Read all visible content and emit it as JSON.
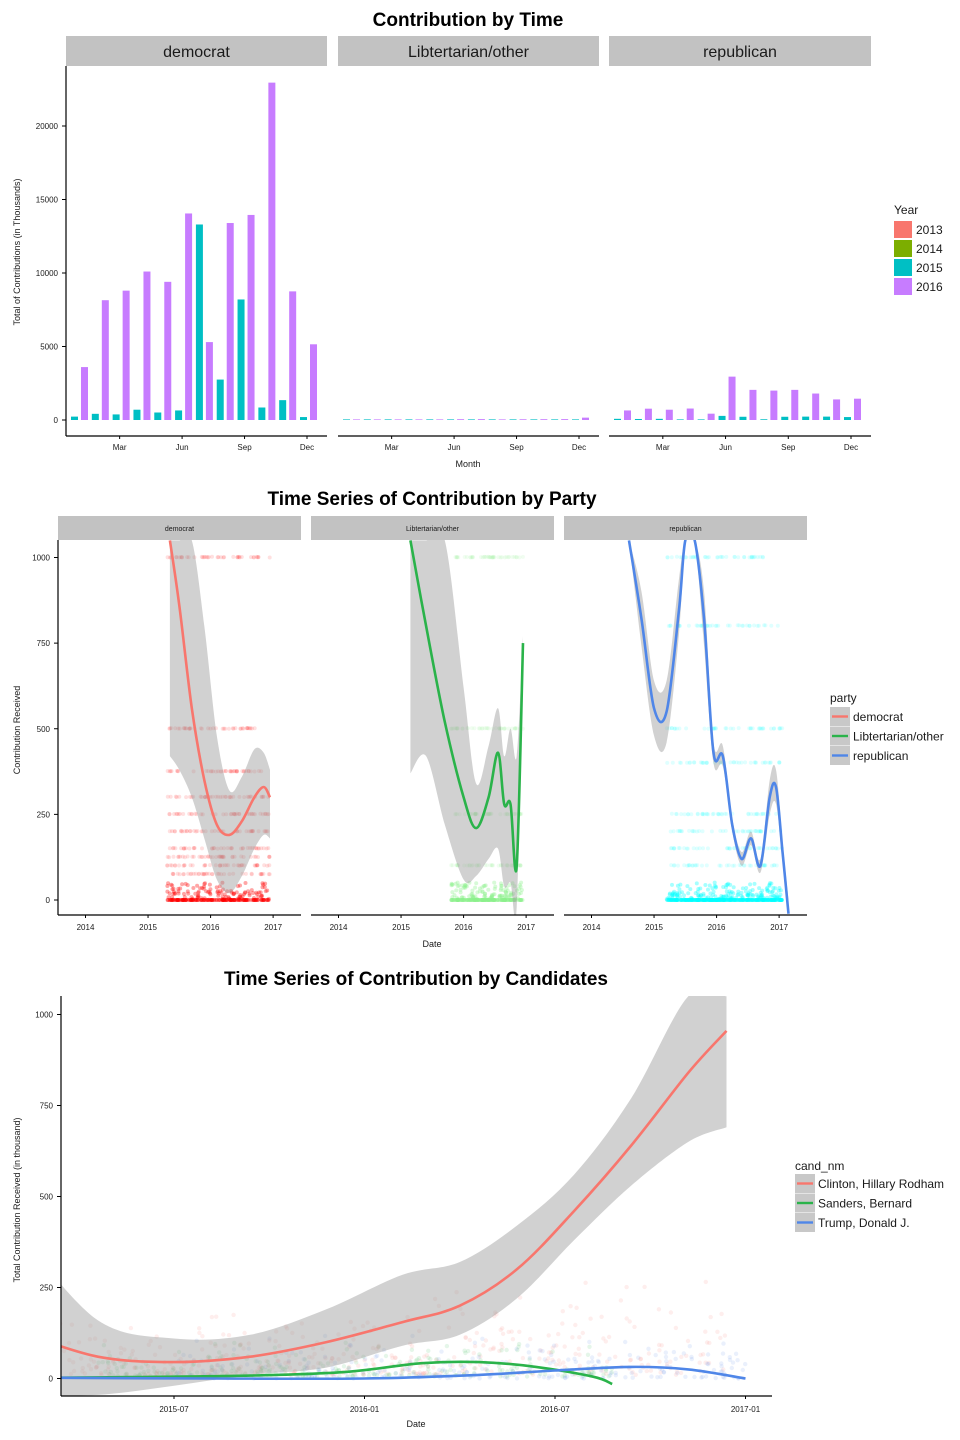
{
  "chart_data": [
    {
      "type": "bar",
      "title": "Contribution by Time",
      "xlabel": "Month",
      "ylabel": "Total of Contributions (in Thousands)",
      "ylim": [
        0,
        23500
      ],
      "y_ticks": [
        0,
        5000,
        10000,
        15000,
        20000
      ],
      "x_ticks": [
        "Mar",
        "Jun",
        "Sep",
        "Dec"
      ],
      "facets": [
        "democrat",
        "Libtertarian/other",
        "republican"
      ],
      "legend": {
        "title": "Year",
        "position": "right",
        "entries": [
          "2013",
          "2014",
          "2015",
          "2016"
        ]
      },
      "series_colors": {
        "2013": "#F8766D",
        "2014": "#7CAE00",
        "2015": "#00BFC4",
        "2016": "#C77CFF"
      },
      "series": [
        {
          "facet": "democrat",
          "year": "2015",
          "month": [
            1,
            2,
            3,
            4,
            5,
            6,
            7,
            8,
            9,
            10,
            11,
            12
          ],
          "values": [
            230,
            420,
            380,
            700,
            510,
            650,
            13300,
            2750,
            8200,
            850,
            1350,
            200
          ]
        },
        {
          "facet": "democrat",
          "year": "2016",
          "month": [
            1,
            2,
            3,
            4,
            5,
            6,
            7,
            8,
            9,
            10,
            11,
            12
          ],
          "values": [
            3600,
            8150,
            8800,
            10100,
            9400,
            14050,
            5300,
            13400,
            13950,
            22950,
            8750,
            5150
          ]
        },
        {
          "facet": "Libtertarian/other",
          "year": "2015",
          "month": [
            1,
            2,
            3,
            4,
            5,
            6,
            7,
            8,
            9,
            10,
            11,
            12
          ],
          "values": [
            0,
            0,
            0,
            0,
            0,
            0,
            30,
            20,
            10,
            10,
            0,
            0
          ]
        },
        {
          "facet": "Libtertarian/other",
          "year": "2016",
          "month": [
            1,
            2,
            3,
            4,
            5,
            6,
            7,
            8,
            9,
            10,
            11,
            12
          ],
          "values": [
            5,
            10,
            20,
            25,
            30,
            55,
            60,
            40,
            50,
            55,
            60,
            160
          ]
        },
        {
          "facet": "republican",
          "year": "2015",
          "month": [
            1,
            2,
            3,
            4,
            5,
            6,
            7,
            8,
            9,
            10,
            11,
            12
          ],
          "values": [
            80,
            70,
            80,
            30,
            30,
            280,
            220,
            50,
            220,
            230,
            230,
            200
          ]
        },
        {
          "facet": "republican",
          "year": "2016",
          "month": [
            1,
            2,
            3,
            4,
            5,
            6,
            7,
            8,
            9,
            10,
            11,
            12
          ],
          "values": [
            650,
            770,
            700,
            780,
            430,
            2950,
            2050,
            2000,
            2050,
            1800,
            1400,
            1450
          ]
        }
      ]
    },
    {
      "type": "scatter",
      "title": "Time Series of Contribution by Party",
      "xlabel": "Date",
      "ylabel": "Contribution Received",
      "ylim": [
        0,
        1050
      ],
      "y_ticks": [
        0,
        250,
        500,
        750,
        1000
      ],
      "x_ticks": [
        "2014",
        "2015",
        "2016",
        "2017"
      ],
      "facets": [
        "democrat",
        "Libtertarian/other",
        "republican"
      ],
      "legend": {
        "title": "party",
        "position": "right",
        "entries": [
          "democrat",
          "Libtertarian/other",
          "republican"
        ]
      },
      "smooth_colors": {
        "democrat": "#F8766D",
        "Libtertarian/other": "#2AB34A",
        "republican": "#4F86E8"
      },
      "point_colors": {
        "democrat": "#FF0000",
        "Libtertarian/other": "#8CF28C",
        "republican": "#00FFFF"
      },
      "series": [
        {
          "name": "democrat",
          "point_range": [
            2015.3,
            2016.95
          ],
          "point_levels": [
            0,
            25,
            50,
            75,
            100,
            125,
            150,
            200,
            250,
            300,
            375,
            500,
            1000
          ],
          "smooth": {
            "x": [
              2015.35,
              2015.5,
              2015.7,
              2015.9,
              2016.1,
              2016.3,
              2016.5,
              2016.7,
              2016.85,
              2016.95
            ],
            "y": [
              1050,
              860,
              560,
              350,
              220,
              190,
              230,
              300,
              330,
              300
            ]
          },
          "band_upper": [
            1050,
            1050,
            1050,
            800,
            480,
            320,
            360,
            440,
            430,
            380
          ],
          "band_lower": [
            420,
            380,
            300,
            180,
            60,
            20,
            70,
            150,
            190,
            180
          ]
        },
        {
          "name": "Libtertarian/other",
          "point_range": [
            2015.8,
            2016.95
          ],
          "point_levels": [
            0,
            25,
            50,
            100,
            250,
            500,
            1000
          ],
          "smooth": {
            "x": [
              2015.15,
              2015.4,
              2015.7,
              2016.0,
              2016.2,
              2016.4,
              2016.55,
              2016.65,
              2016.75,
              2016.85,
              2016.95
            ],
            "y": [
              1050,
              800,
              520,
              300,
              210,
              300,
              430,
              280,
              280,
              100,
              750
            ]
          },
          "band_upper": [
            1050,
            1050,
            1050,
            620,
            340,
            450,
            560,
            420,
            500,
            420,
            770
          ],
          "band_lower": [
            370,
            420,
            220,
            60,
            70,
            120,
            150,
            40,
            50,
            -20,
            730
          ]
        },
        {
          "name": "republican",
          "point_range": [
            2015.2,
            2017.05
          ],
          "point_levels": [
            0,
            10,
            20,
            30,
            50,
            100,
            150,
            200,
            250,
            400,
            500,
            800,
            1000
          ],
          "smooth": {
            "x": [
              2014.6,
              2014.8,
              2015.0,
              2015.2,
              2015.4,
              2015.5,
              2015.65,
              2015.8,
              2015.95,
              2016.1,
              2016.25,
              2016.4,
              2016.55,
              2016.7,
              2016.85,
              2016.95,
              2017.05,
              2017.15
            ],
            "y": [
              1050,
              820,
              560,
              550,
              850,
              1050,
              1050,
              820,
              430,
              420,
              220,
              120,
              180,
              100,
              300,
              330,
              150,
              -40
            ]
          },
          "band_upper": [
            1050,
            900,
            640,
            640,
            940,
            1050,
            1050,
            900,
            460,
            450,
            240,
            140,
            200,
            120,
            350,
            380,
            180,
            0
          ],
          "band_lower": [
            1050,
            740,
            480,
            460,
            780,
            1050,
            1050,
            740,
            400,
            390,
            200,
            100,
            160,
            80,
            250,
            280,
            120,
            -40
          ]
        }
      ]
    },
    {
      "type": "line",
      "title": "Time Series of Contribution by Candidates",
      "xlabel": "Date",
      "ylabel": "Total Contribution Received (in thousand)",
      "ylim": [
        -45,
        1050
      ],
      "y_ticks": [
        0,
        250,
        500,
        750,
        1000
      ],
      "x_ticks": [
        "2015-07",
        "2016-01",
        "2016-07",
        "2017-01"
      ],
      "x_tick_values": [
        2015.5,
        2016.0,
        2016.5,
        2017.0
      ],
      "xlim": [
        2015.0,
        2017.1
      ],
      "legend": {
        "title": "cand_nm",
        "position": "right",
        "entries": [
          "Clinton, Hillary Rodham",
          "Sanders, Bernard",
          "Trump, Donald J."
        ]
      },
      "series": [
        {
          "name": "Clinton, Hillary Rodham",
          "color": "#F8766D",
          "x": [
            2015.1,
            2015.3,
            2015.5,
            2015.7,
            2015.9,
            2016.1,
            2016.25,
            2016.4,
            2016.55,
            2016.7,
            2016.85,
            2016.95
          ],
          "y": [
            125,
            60,
            45,
            60,
            100,
            155,
            200,
            300,
            460,
            640,
            840,
            955
          ],
          "band_upper": [
            390,
            160,
            110,
            120,
            190,
            285,
            320,
            420,
            560,
            770,
            1050,
            1050
          ],
          "band_lower": [
            -45,
            -45,
            -20,
            10,
            30,
            90,
            120,
            220,
            380,
            530,
            650,
            690
          ]
        },
        {
          "name": "Sanders, Bernard",
          "color": "#2AB34A",
          "x": [
            2015.15,
            2015.4,
            2015.7,
            2015.95,
            2016.15,
            2016.3,
            2016.45,
            2016.6,
            2016.65
          ],
          "y": [
            2,
            4,
            8,
            18,
            42,
            45,
            32,
            5,
            -15
          ]
        },
        {
          "name": "Trump, Donald J.",
          "color": "#4F86E8",
          "x": [
            2015.2,
            2015.6,
            2016.0,
            2016.3,
            2016.5,
            2016.7,
            2016.85,
            2017.0
          ],
          "y": [
            2,
            0,
            0,
            10,
            22,
            32,
            25,
            0
          ]
        }
      ],
      "scatter_points": [
        {
          "name": "Clinton, Hillary Rodham",
          "color": "#F8766D",
          "x_range": [
            2015.1,
            2016.95
          ],
          "y_range": [
            10,
            320
          ]
        },
        {
          "name": "Sanders, Bernard",
          "color": "#2AB34A",
          "x_range": [
            2015.3,
            2016.65
          ],
          "y_range": [
            5,
            110
          ]
        },
        {
          "name": "Trump, Donald J.",
          "color": "#4F86E8",
          "x_range": [
            2015.5,
            2017.0
          ],
          "y_range": [
            0,
            120
          ]
        }
      ]
    }
  ]
}
